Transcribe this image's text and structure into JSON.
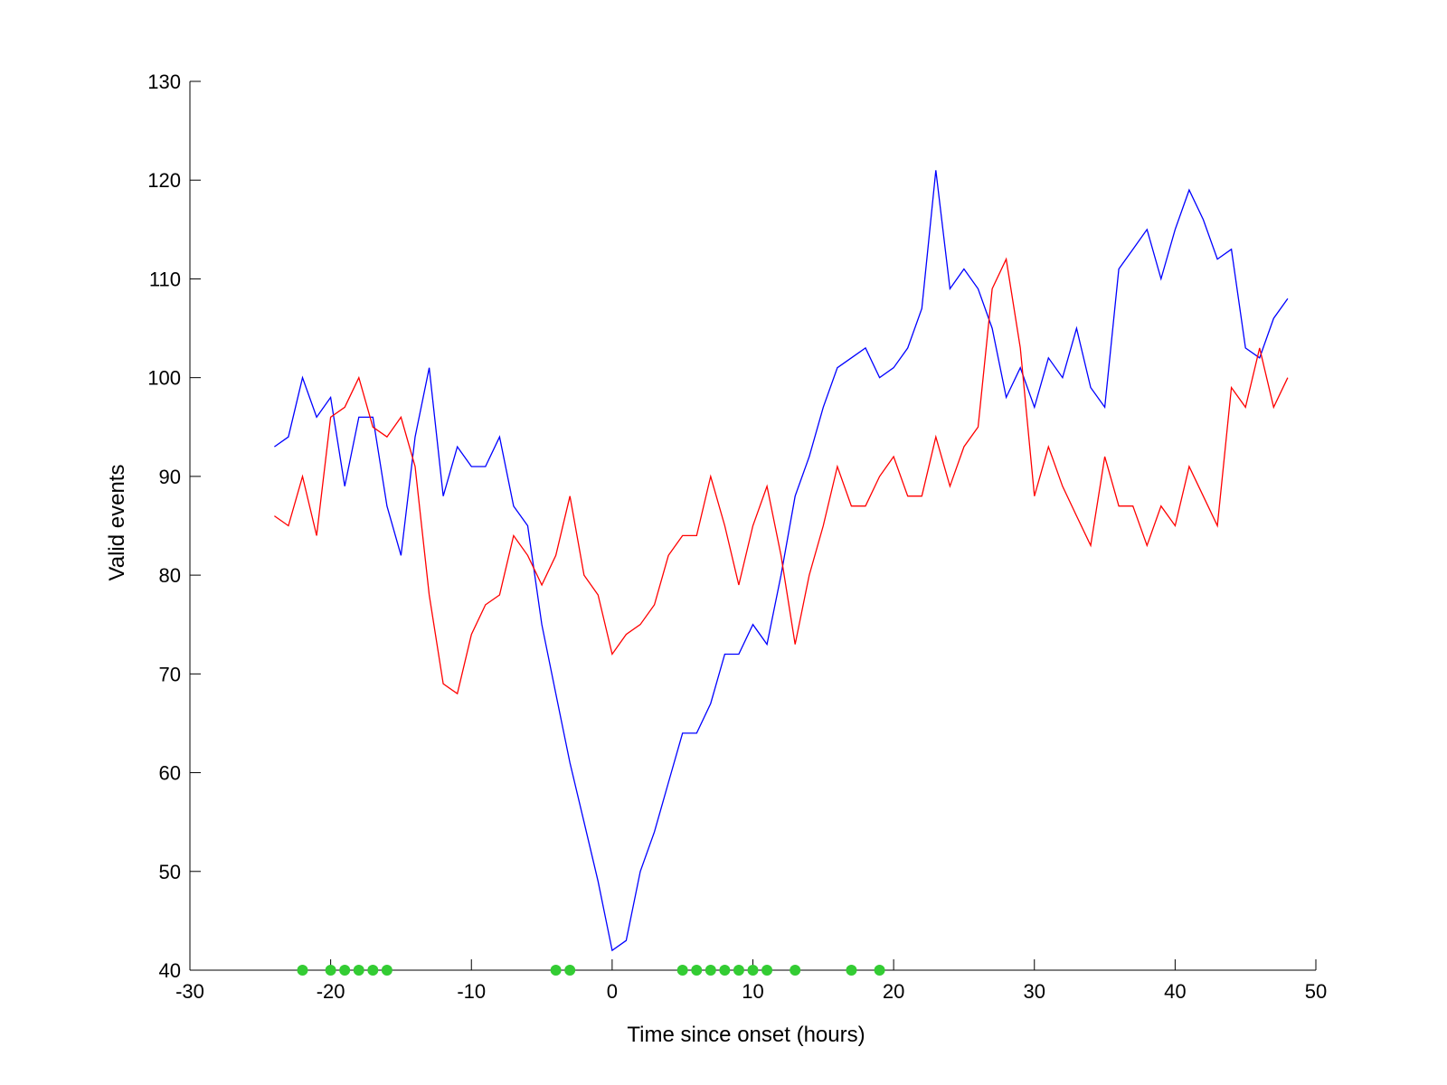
{
  "chart_data": {
    "type": "line",
    "title": "",
    "xlabel": "Time since onset (hours)",
    "ylabel": "Valid events",
    "xlim": [
      -30,
      50
    ],
    "ylim": [
      40,
      130
    ],
    "xticks": [
      -30,
      -20,
      -10,
      0,
      10,
      20,
      30,
      40,
      50
    ],
    "yticks": [
      40,
      50,
      60,
      70,
      80,
      90,
      100,
      110,
      120,
      130
    ],
    "grid": false,
    "legend": "none",
    "series": [
      {
        "color": "#0000ff",
        "x": [
          -24,
          -23,
          -22,
          -21,
          -20,
          -19,
          -18,
          -17,
          -16,
          -15,
          -14,
          -13,
          -12,
          -11,
          -10,
          -9,
          -8,
          -7,
          -6,
          -5,
          -4,
          -3,
          -2,
          -1,
          0,
          1,
          2,
          3,
          4,
          5,
          6,
          7,
          8,
          9,
          10,
          11,
          12,
          13,
          14,
          15,
          16,
          17,
          18,
          19,
          20,
          21,
          22,
          23,
          24,
          25,
          26,
          27,
          28,
          29,
          30,
          31,
          32,
          33,
          34,
          35,
          36,
          37,
          38,
          39,
          40,
          41,
          42,
          43,
          44,
          45,
          46,
          47,
          48
        ],
        "values": [
          93,
          94,
          100,
          96,
          98,
          89,
          96,
          96,
          87,
          82,
          94,
          101,
          88,
          93,
          91,
          91,
          94,
          87,
          85,
          75,
          68,
          61,
          55,
          49,
          42,
          43,
          50,
          54,
          59,
          64,
          64,
          67,
          72,
          72,
          75,
          73,
          80,
          88,
          92,
          97,
          101,
          102,
          103,
          100,
          101,
          103,
          107,
          121,
          109,
          111,
          109,
          105,
          98,
          101,
          97,
          102,
          100,
          105,
          99,
          97,
          111,
          113,
          115,
          110,
          115,
          119,
          116,
          112,
          113,
          103,
          102,
          106,
          108
        ]
      },
      {
        "color": "#ff0000",
        "x": [
          -24,
          -23,
          -22,
          -21,
          -20,
          -19,
          -18,
          -17,
          -16,
          -15,
          -14,
          -13,
          -12,
          -11,
          -10,
          -9,
          -8,
          -7,
          -6,
          -5,
          -4,
          -3,
          -2,
          -1,
          0,
          1,
          2,
          3,
          4,
          5,
          6,
          7,
          8,
          9,
          10,
          11,
          12,
          13,
          14,
          15,
          16,
          17,
          18,
          19,
          20,
          21,
          22,
          23,
          24,
          25,
          26,
          27,
          28,
          29,
          30,
          31,
          32,
          33,
          34,
          35,
          36,
          37,
          38,
          39,
          40,
          41,
          42,
          43,
          44,
          45,
          46,
          47,
          48
        ],
        "values": [
          86,
          85,
          90,
          84,
          96,
          97,
          100,
          95,
          94,
          96,
          91,
          78,
          69,
          68,
          74,
          77,
          78,
          84,
          82,
          79,
          82,
          88,
          80,
          78,
          72,
          74,
          75,
          77,
          82,
          84,
          84,
          90,
          85,
          79,
          85,
          89,
          82,
          73,
          80,
          85,
          91,
          87,
          87,
          90,
          92,
          88,
          88,
          94,
          89,
          93,
          95,
          109,
          112,
          103,
          88,
          93,
          89,
          86,
          83,
          92,
          87,
          87,
          83,
          87,
          85,
          91,
          88,
          85,
          99,
          97,
          103,
          97,
          100
        ]
      }
    ],
    "markers": {
      "color": "#33cc33",
      "y": 40,
      "x": [
        -22,
        -20,
        -19,
        -18,
        -17,
        -16,
        -4,
        -3,
        5,
        6,
        7,
        8,
        9,
        10,
        11,
        13,
        17,
        19
      ]
    }
  }
}
